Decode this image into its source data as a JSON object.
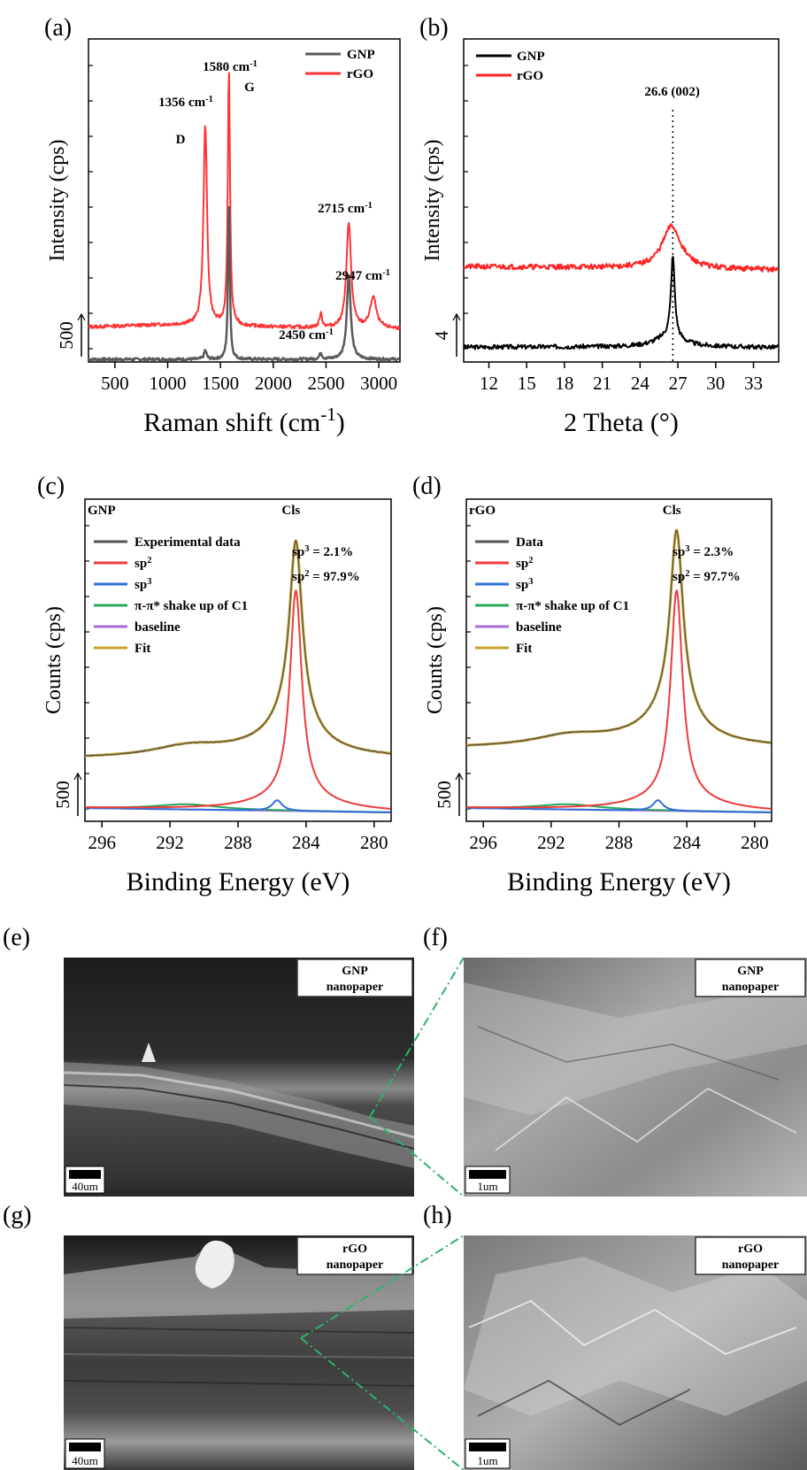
{
  "panels": {
    "a": "(a)",
    "b": "(b)",
    "c": "(c)",
    "d": "(d)",
    "e": "(e)",
    "f": "(f)",
    "g": "(g)",
    "h": "(h)"
  },
  "chart_data": [
    {
      "id": "a",
      "type": "line",
      "xlabel": "Raman shift (cm⁻¹)",
      "ylabel": "Intensity (cps)",
      "xlim": [
        250,
        3200
      ],
      "xticks": [
        500,
        1000,
        1500,
        2000,
        2500,
        3000
      ],
      "scale_bar": "500",
      "legend": [
        {
          "name": "GNP",
          "color": "#5a5a5a"
        },
        {
          "name": "rGO",
          "color": "#ff3333"
        }
      ],
      "annotations": [
        "1580 cm⁻¹",
        "G",
        "1356 cm⁻¹",
        "D",
        "2715 cm⁻¹",
        "2947 cm⁻¹",
        "2450 cm⁻¹"
      ],
      "peaks": {
        "rGO": [
          [
            1356,
            1.0
          ],
          [
            1580,
            1.0
          ],
          [
            2450,
            0.06
          ],
          [
            2715,
            0.55
          ],
          [
            2947,
            0.15
          ]
        ],
        "GNP": [
          [
            1356,
            0.04
          ],
          [
            1580,
            1.0
          ],
          [
            2450,
            0.05
          ],
          [
            2715,
            0.55
          ]
        ]
      }
    },
    {
      "id": "b",
      "type": "line",
      "xlabel": "2 Theta (°)",
      "ylabel": "Intensity (cps)",
      "xlim": [
        10,
        35
      ],
      "xticks": [
        12,
        15,
        18,
        21,
        24,
        27,
        30,
        33
      ],
      "scale_bar": "4",
      "legend": [
        {
          "name": "GNP",
          "color": "#000000"
        },
        {
          "name": "rGO",
          "color": "#ff2222"
        }
      ],
      "annotations": [
        "26.6 (002)"
      ],
      "peaks": {
        "GNP": [
          [
            26.6,
            1.0
          ]
        ],
        "rGO": [
          [
            26.5,
            1.0
          ]
        ]
      }
    },
    {
      "id": "c",
      "type": "line",
      "sample": "GNP",
      "xlabel": "Binding Energy (eV)",
      "ylabel": "Counts (cps)",
      "xlim": [
        297,
        279
      ],
      "xticks": [
        296,
        292,
        288,
        284,
        280
      ],
      "scale_bar": "500",
      "peak_label": "Cls",
      "sp3": "sp³ = 2.1%",
      "sp2": "sp² = 97.9%",
      "legend": [
        {
          "name": "Experimental data",
          "color": "#555555"
        },
        {
          "name": "sp²",
          "color": "#ee3b3b"
        },
        {
          "name": "sp³",
          "color": "#2f6fd6"
        },
        {
          "name": "π-π* shake up of C1",
          "color": "#27a85a"
        },
        {
          "name": "baseline",
          "color": "#a96cd8"
        },
        {
          "name": "Fit",
          "color": "#c9a227"
        }
      ],
      "peaks": {
        "sp2": 284.6,
        "sp3": 285.7,
        "shake_up": 291
      }
    },
    {
      "id": "d",
      "type": "line",
      "sample": "rGO",
      "xlabel": "Binding Energy (eV)",
      "ylabel": "Counts (cps)",
      "xlim": [
        297,
        279
      ],
      "xticks": [
        296,
        292,
        288,
        284,
        280
      ],
      "scale_bar": "500",
      "peak_label": "Cls",
      "sp3": "sp³ = 2.3%",
      "sp2": "sp² = 97.7%",
      "legend": [
        {
          "name": "Data",
          "color": "#555555"
        },
        {
          "name": "sp²",
          "color": "#ee3b3b"
        },
        {
          "name": "sp³",
          "color": "#2f6fd6"
        },
        {
          "name": "π-π* shake up of C1",
          "color": "#27a85a"
        },
        {
          "name": "baseline",
          "color": "#a96cd8"
        },
        {
          "name": "Fit",
          "color": "#c9a227"
        }
      ],
      "peaks": {
        "sp2": 284.6,
        "sp3": 285.7,
        "shake_up": 291
      }
    }
  ],
  "images": [
    {
      "id": "e",
      "label_line1": "GNP",
      "label_line2": "nanopaper",
      "scale": "40um"
    },
    {
      "id": "f",
      "label_line1": "GNP",
      "label_line2": "nanopaper",
      "scale": "1um"
    },
    {
      "id": "g",
      "label_line1": "rGO",
      "label_line2": "nanopaper",
      "scale": "40um"
    },
    {
      "id": "h",
      "label_line1": "rGO",
      "label_line2": "nanopaper",
      "scale": "1um"
    }
  ]
}
